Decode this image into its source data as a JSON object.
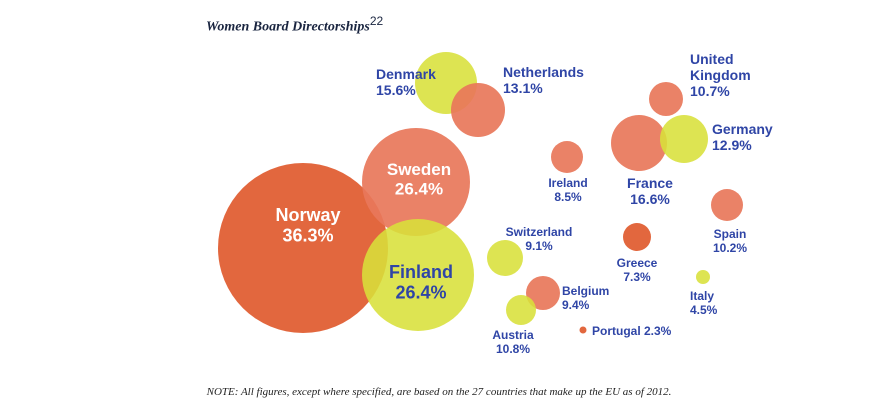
{
  "chart_data": {
    "type": "bubble",
    "title": "Women Board Directorships",
    "title_footnote": "22",
    "note": "NOTE: All figures, except where specified, are based on the 27 countries that make up the EU as of 2012.",
    "unit": "%",
    "colors": {
      "dark_orange": "#e05a2e",
      "orange": "#e8775a",
      "yellow": "#d8e03a",
      "label_blue": "#2f45a6"
    },
    "points": [
      {
        "country": "Norway",
        "value": 36.3,
        "label": "36.3%",
        "color": "dark_orange"
      },
      {
        "country": "Sweden",
        "value": 26.4,
        "label": "26.4%",
        "color": "orange"
      },
      {
        "country": "Finland",
        "value": 26.4,
        "label": "26.4%",
        "color": "yellow"
      },
      {
        "country": "Denmark",
        "value": 15.6,
        "label": "15.6%",
        "color": "yellow"
      },
      {
        "country": "Netherlands",
        "value": 13.1,
        "label": "13.1%",
        "color": "orange"
      },
      {
        "country": "Ireland",
        "value": 8.5,
        "label": "8.5%",
        "color": "orange"
      },
      {
        "country": "Switzerland",
        "value": 9.1,
        "label": "9.1%",
        "color": "yellow"
      },
      {
        "country": "Belgium",
        "value": 9.4,
        "label": "9.4%",
        "color": "orange"
      },
      {
        "country": "Austria",
        "value": 10.8,
        "label": "10.8%",
        "color": "yellow"
      },
      {
        "country": "Portugal",
        "value": 2.3,
        "label": "Portugal 2.3%",
        "color": "dark_orange"
      },
      {
        "country": "Greece",
        "value": 7.3,
        "label": "7.3%",
        "color": "dark_orange"
      },
      {
        "country": "France",
        "value": 16.6,
        "label": "16.6%",
        "color": "orange"
      },
      {
        "country": "Germany",
        "value": 12.9,
        "label": "12.9%",
        "color": "yellow"
      },
      {
        "country": "United Kingdom",
        "value": 10.7,
        "label": "10.7%",
        "color": "orange",
        "name_lines": [
          "United",
          "Kingdom"
        ]
      },
      {
        "country": "Spain",
        "value": 10.2,
        "label": "10.2%",
        "color": "orange"
      },
      {
        "country": "Italy",
        "value": 4.5,
        "label": "4.5%",
        "color": "yellow"
      }
    ]
  }
}
